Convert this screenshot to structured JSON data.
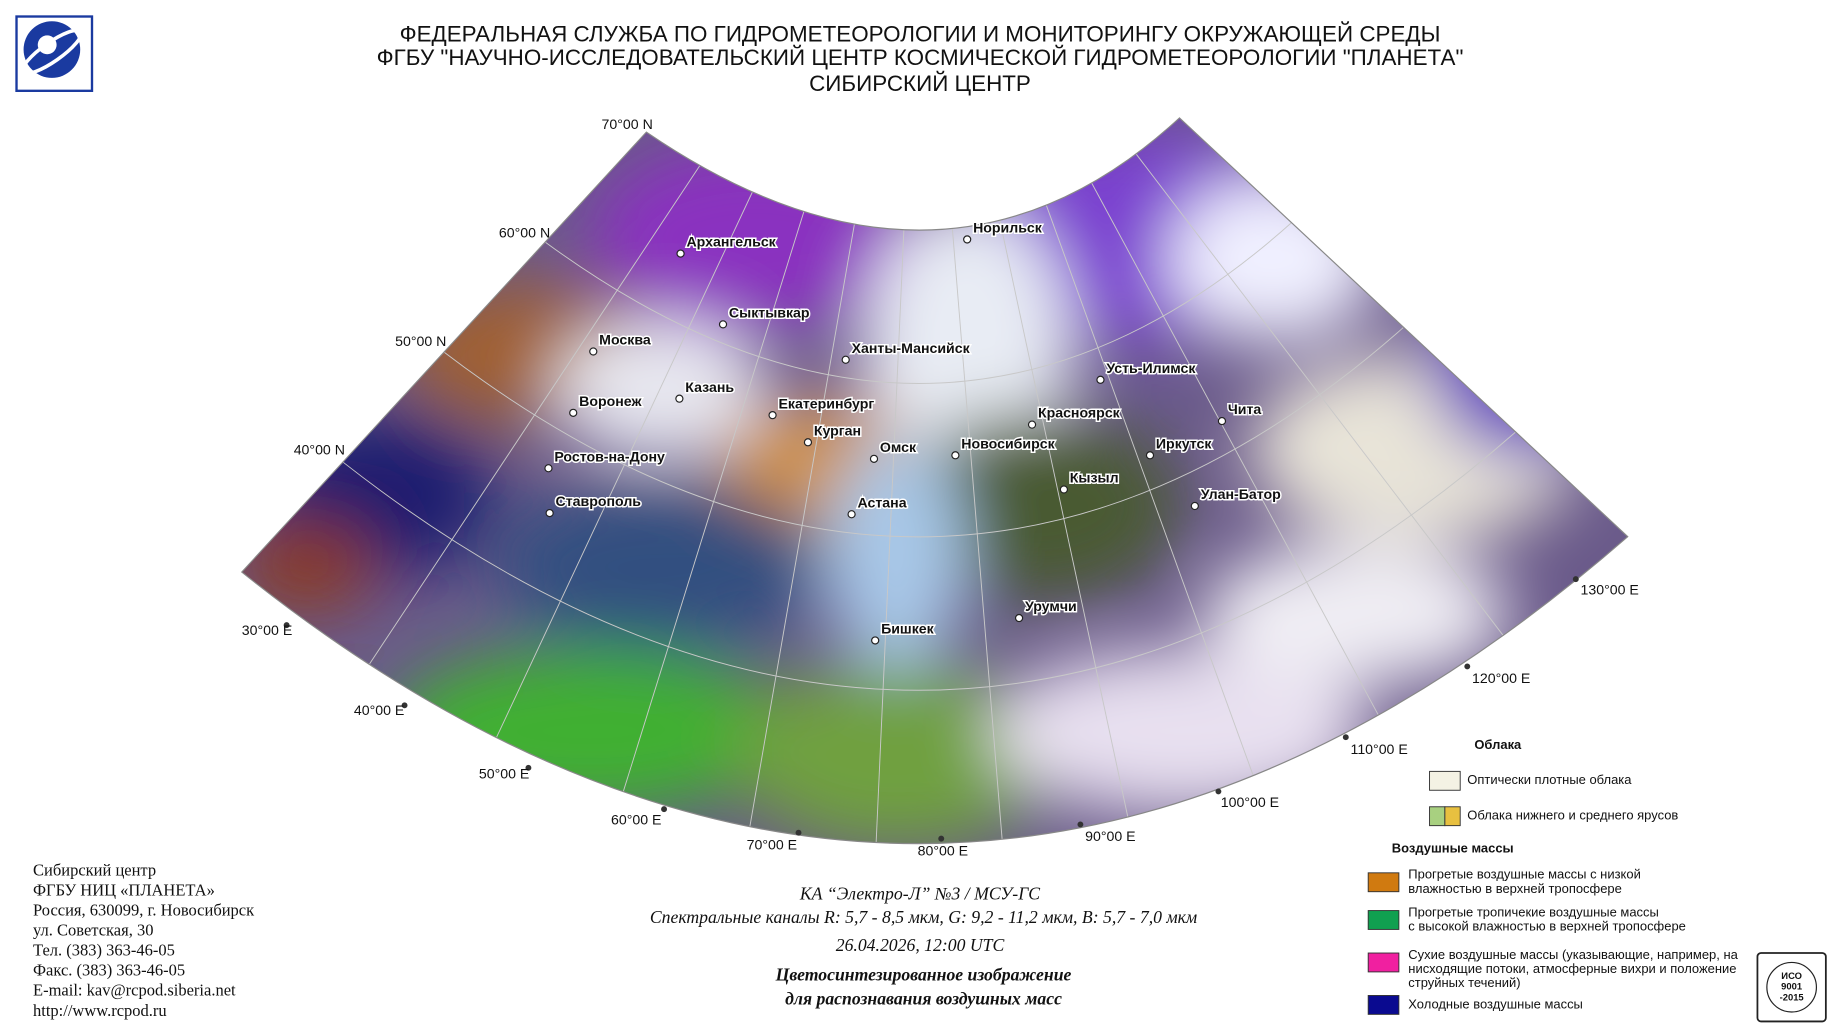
{
  "header": {
    "lines": [
      "ФЕДЕРАЛЬНАЯ СЛУЖБА ПО ГИДРОМЕТЕОРОЛОГИИ И МОНИТОРИНГУ ОКРУЖАЮЩЕЙ СРЕДЫ",
      "ФГБУ \"НАУЧНО-ИССЛЕДОВАТЕЛЬСКИЙ ЦЕНТР КОСМИЧЕСКОЙ ГИДРОМЕТЕОРОЛОГИИ \"ПЛАНЕТА\"",
      "СИБИРСКИЙ ЦЕНТР"
    ]
  },
  "map": {
    "latitude_labels": [
      "70°00 N",
      "60°00 N",
      "50°00 N",
      "40°00 N"
    ],
    "longitude_labels": [
      "30°00 E",
      "40°00 E",
      "50°00 E",
      "60°00 E",
      "70°00 E",
      "80°00 E",
      "90°00 E",
      "100°00 E",
      "110°00 E",
      "120°00 E",
      "130°00 E"
    ],
    "cities": [
      "Архангельск",
      "Норильск",
      "Сыктывкар",
      "Москва",
      "Ханты-Мансийск",
      "Казань",
      "Усть-Илимск",
      "Воронеж",
      "Екатеринбург",
      "Красноярск",
      "Чита",
      "Курган",
      "Омск",
      "Новосибирск",
      "Иркутск",
      "Ростов-на-Дону",
      "Кызыл",
      "Улан-Батор",
      "Ставрополь",
      "Астана",
      "Урумчи",
      "Бишкек"
    ]
  },
  "legend": {
    "clouds_title": "Облака",
    "clouds": [
      {
        "text": [
          "Оптически плотные облака"
        ],
        "colors": [
          "#f4f2e4"
        ]
      },
      {
        "text": [
          "Облака нижнего и среднего ярусов"
        ],
        "colors": [
          "#a8d080",
          "#e8c040"
        ]
      }
    ],
    "air_masses_title": "Воздушные массы",
    "air_masses": [
      {
        "text": [
          "Прогретые воздушные массы с низкой",
          "влажностью в верхней тропосфере"
        ],
        "color": "#d07a10"
      },
      {
        "text": [
          "Прогретые тропичекие воздушные массы",
          "с высокой влажностью в верхней тропосфере"
        ],
        "color": "#10a050"
      },
      {
        "text": [
          "Сухие воздушные массы (указывающие, например, на",
          "нисходящие потоки, атмосферные вихри и положение",
          "струйных течений)"
        ],
        "color": "#f020a0"
      },
      {
        "text": [
          "Холодные воздушные массы"
        ],
        "color": "#0a0a90"
      }
    ]
  },
  "footer": {
    "address": [
      "Сибирский центр",
      "ФГБУ НИЦ «ПЛАНЕТА»",
      "Россия, 630099, г. Новосибирск",
      "ул. Советская, 30",
      "Тел. (383) 363-46-05",
      "Факс. (383) 363-46-05",
      "E-mail: kav@rcpod.siberia.net",
      "http://www.rcpod.ru"
    ],
    "satellite": "КА “Электро-Л” №3 / МСУ-ГС",
    "channels": "Спектральные каналы R: 5,7 - 8,5 мкм, G: 9,2 - 11,2 мкм, B: 5,7 - 7,0 мкм",
    "datetime": "26.04.2026, 12:00 UTC",
    "product": [
      "Цветосинтезированное изображение",
      "для распознавания воздушных масс"
    ]
  },
  "iso_logo": [
    "ИСО",
    "9001",
    "-2015"
  ]
}
